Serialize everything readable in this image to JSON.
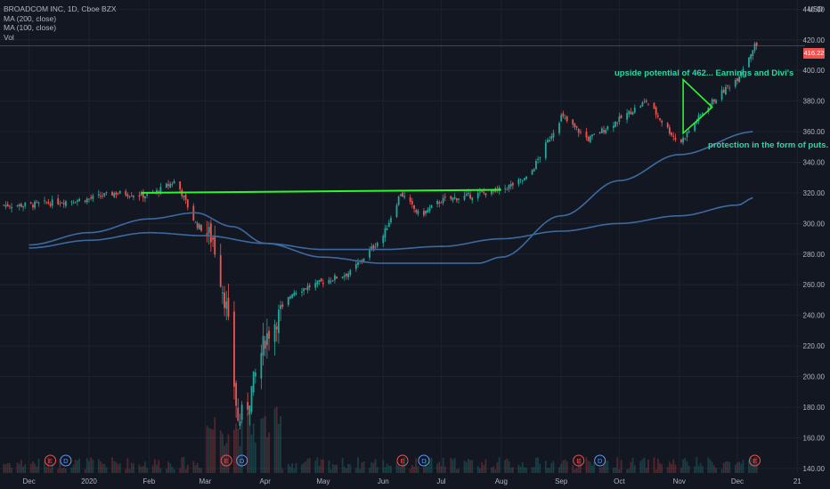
{
  "header": {
    "symbol_line": "BROADCOM INC, 1D, Cboe BZX",
    "ma1_label": "MA (200, close)",
    "ma2_label": "MA (100, close)",
    "vol_label": "Vol",
    "currency": "USD",
    "last_price": "416.22"
  },
  "annotations": {
    "upside": "upside potential of 462... Earnings and Divi's",
    "protection": "protection in the form of puts."
  },
  "colors": {
    "background": "#131722",
    "up": "#26a69a",
    "down": "#ef5350",
    "ma": "#3d6a9e",
    "resistance": "#2ef52e",
    "triangle": "#2ef52e",
    "annotation_text": "#2ed8a3",
    "price_line": "#ef5350"
  },
  "chart_data": {
    "type": "candlestick",
    "title": "BROADCOM INC, 1D, Cboe BZX",
    "y_ticks": [
      140,
      160,
      180,
      200,
      220,
      240,
      260,
      280,
      300,
      320,
      340,
      360,
      380,
      400,
      420,
      440
    ],
    "ylim": [
      137,
      446
    ],
    "x_ticks": [
      "Dec",
      "2020",
      "Feb",
      "Mar",
      "Apr",
      "May",
      "Jun",
      "Jul",
      "Aug",
      "Sep",
      "Oct",
      "Nov",
      "Dec",
      "21"
    ],
    "grid": true,
    "price_series": [
      {
        "date": "2019-12-01",
        "close": 312
      },
      {
        "date": "2019-12-15",
        "close": 314
      },
      {
        "date": "2020-01-01",
        "close": 316
      },
      {
        "date": "2020-01-15",
        "close": 320
      },
      {
        "date": "2020-02-01",
        "close": 318
      },
      {
        "date": "2020-02-15",
        "close": 328
      },
      {
        "date": "2020-02-25",
        "close": 300
      },
      {
        "date": "2020-03-05",
        "close": 290
      },
      {
        "date": "2020-03-12",
        "close": 245
      },
      {
        "date": "2020-03-18",
        "close": 170
      },
      {
        "date": "2020-03-23",
        "close": 182
      },
      {
        "date": "2020-04-01",
        "close": 225
      },
      {
        "date": "2020-04-15",
        "close": 255
      },
      {
        "date": "2020-05-01",
        "close": 262
      },
      {
        "date": "2020-05-15",
        "close": 268
      },
      {
        "date": "2020-06-01",
        "close": 292
      },
      {
        "date": "2020-06-10",
        "close": 320
      },
      {
        "date": "2020-06-20",
        "close": 305
      },
      {
        "date": "2020-07-01",
        "close": 315
      },
      {
        "date": "2020-07-15",
        "close": 318
      },
      {
        "date": "2020-08-01",
        "close": 322
      },
      {
        "date": "2020-08-15",
        "close": 330
      },
      {
        "date": "2020-09-01",
        "close": 370
      },
      {
        "date": "2020-09-15",
        "close": 355
      },
      {
        "date": "2020-10-01",
        "close": 368
      },
      {
        "date": "2020-10-15",
        "close": 380
      },
      {
        "date": "2020-11-01",
        "close": 352
      },
      {
        "date": "2020-11-15",
        "close": 376
      },
      {
        "date": "2020-12-01",
        "close": 395
      },
      {
        "date": "2020-12-10",
        "close": 416.22
      }
    ],
    "series": [
      {
        "name": "MA (200, close)",
        "values": [
          {
            "date": "2019-12-01",
            "value": 284
          },
          {
            "date": "2020-01-01",
            "value": 289
          },
          {
            "date": "2020-02-01",
            "value": 294
          },
          {
            "date": "2020-03-01",
            "value": 292
          },
          {
            "date": "2020-04-01",
            "value": 287
          },
          {
            "date": "2020-05-01",
            "value": 283
          },
          {
            "date": "2020-06-01",
            "value": 283
          },
          {
            "date": "2020-07-01",
            "value": 285
          },
          {
            "date": "2020-08-01",
            "value": 290
          },
          {
            "date": "2020-09-01",
            "value": 295
          },
          {
            "date": "2020-10-01",
            "value": 300
          },
          {
            "date": "2020-11-01",
            "value": 305
          },
          {
            "date": "2020-12-01",
            "value": 312
          },
          {
            "date": "2020-12-10",
            "value": 317
          }
        ]
      },
      {
        "name": "MA (100, close)",
        "values": [
          {
            "date": "2019-12-01",
            "value": 286
          },
          {
            "date": "2020-01-01",
            "value": 294
          },
          {
            "date": "2020-02-01",
            "value": 303
          },
          {
            "date": "2020-02-25",
            "value": 307
          },
          {
            "date": "2020-03-15",
            "value": 298
          },
          {
            "date": "2020-04-01",
            "value": 287
          },
          {
            "date": "2020-05-01",
            "value": 278
          },
          {
            "date": "2020-06-01",
            "value": 274
          },
          {
            "date": "2020-07-01",
            "value": 274
          },
          {
            "date": "2020-07-20",
            "value": 274
          },
          {
            "date": "2020-08-01",
            "value": 278
          },
          {
            "date": "2020-09-01",
            "value": 305
          },
          {
            "date": "2020-10-01",
            "value": 328
          },
          {
            "date": "2020-11-01",
            "value": 345
          },
          {
            "date": "2020-12-10",
            "value": 360
          }
        ]
      }
    ],
    "resistance_line": {
      "from": {
        "date": "2020-01-28",
        "value": 320
      },
      "to": {
        "date": "2020-08-01",
        "value": 322
      }
    },
    "triangle": [
      {
        "date": "2020-11-03",
        "value": 394
      },
      {
        "date": "2020-11-18",
        "value": 376
      },
      {
        "date": "2020-11-03",
        "value": 359
      }
    ],
    "event_markers": [
      {
        "date": "2019-12-12",
        "label": "E"
      },
      {
        "date": "2019-12-20",
        "label": "D"
      },
      {
        "date": "2020-03-12",
        "label": "E"
      },
      {
        "date": "2020-03-20",
        "label": "D"
      },
      {
        "date": "2020-06-11",
        "label": "E"
      },
      {
        "date": "2020-06-22",
        "label": "D"
      },
      {
        "date": "2020-09-10",
        "label": "E"
      },
      {
        "date": "2020-09-21",
        "label": "D"
      },
      {
        "date": "2020-12-10",
        "label": "E"
      }
    ]
  }
}
